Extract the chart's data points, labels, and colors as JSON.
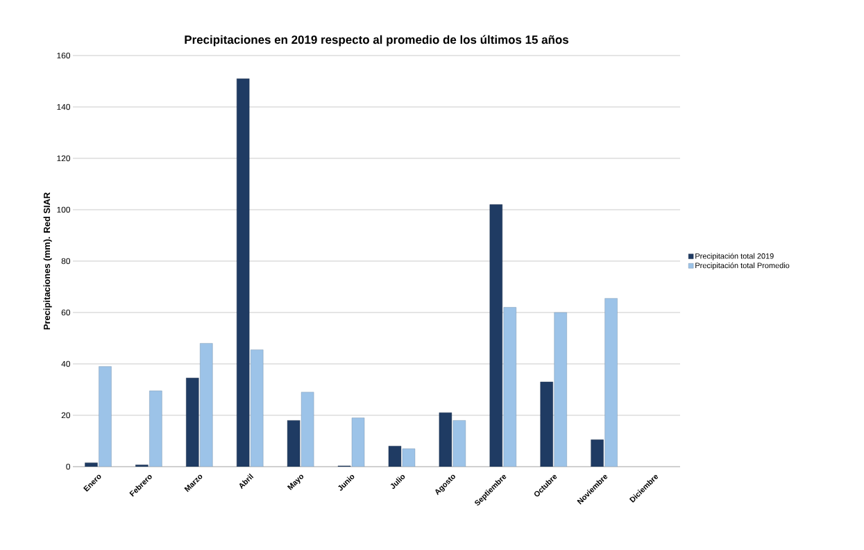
{
  "chart_data": {
    "type": "bar",
    "title": "Precipitaciones en 2019 respecto al promedio de los  últimos 15 años",
    "ylabel": "Precipitaciones (mm). Red  SIAR",
    "categories": [
      "Enero",
      "Febrero",
      "Marzo",
      "Abril",
      "Mayo",
      "Junio",
      "Julio",
      "Agosto",
      "Septiembre",
      "Octubre",
      "Noviembre",
      "Diciembre"
    ],
    "series": [
      {
        "name": "Precipitación total 2019",
        "color": "#1f3b63",
        "values": [
          1.5,
          0.7,
          34.5,
          151,
          18,
          0.3,
          8,
          21,
          102,
          33,
          10.5,
          null
        ]
      },
      {
        "name": "Precipitación total Promedio",
        "color": "#9cc3e8",
        "values": [
          39,
          29.5,
          48,
          45.5,
          29,
          19,
          7,
          18,
          62,
          60,
          65.5,
          null
        ]
      }
    ],
    "ylim": [
      0,
      160
    ],
    "yticks": [
      0,
      20,
      40,
      60,
      80,
      100,
      120,
      140,
      160
    ],
    "grid": "y",
    "legend": "right"
  }
}
